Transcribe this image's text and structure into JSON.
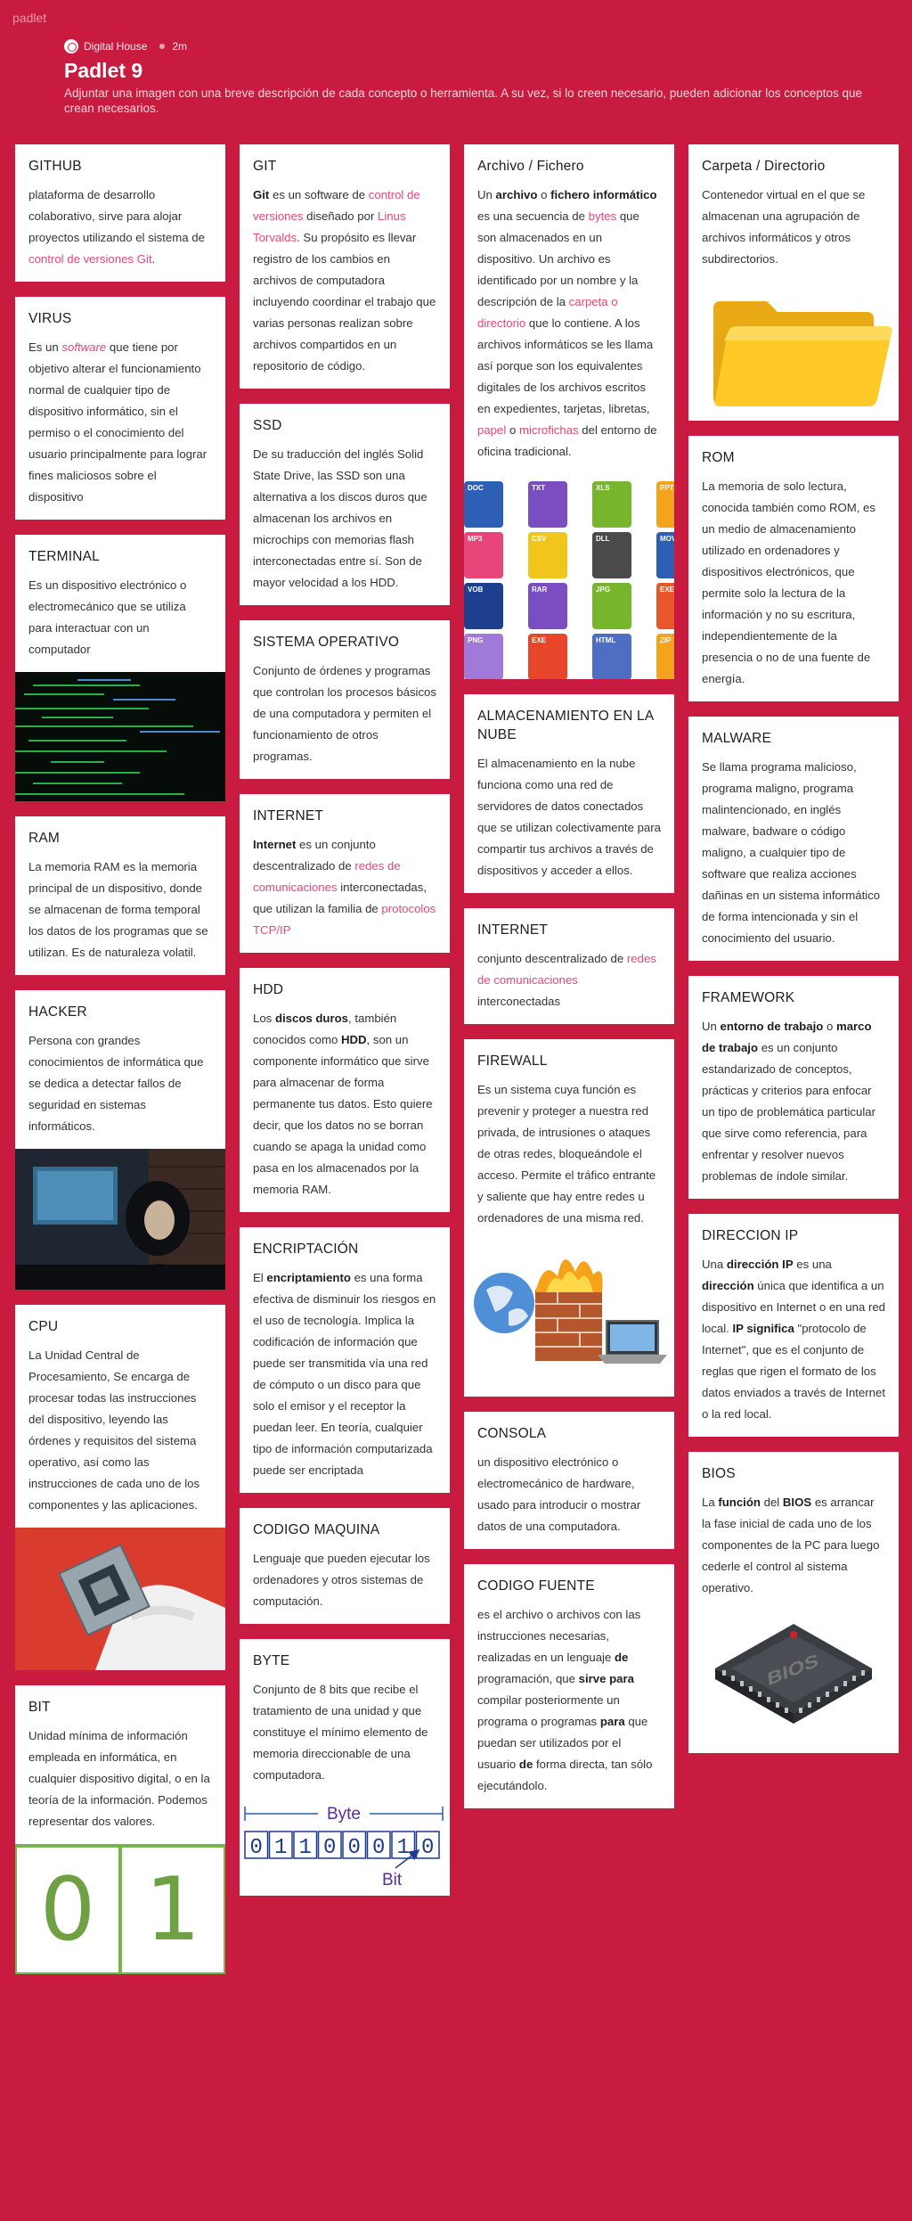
{
  "brand": "padlet",
  "header": {
    "author": "Digital House",
    "time": "2m",
    "title": "Padlet 9",
    "description": "Adjuntar una imagen con una breve descripción de cada concepto o herramienta. A su vez, si lo creen necesario, pueden adicionar los conceptos que crean necesarios."
  },
  "cards": {
    "github": {
      "title": "GITHUB",
      "p1": "plataforma de desarrollo colaborativo, sirve para alojar proyectos utilizando el sistema de ",
      "link": "control de versiones Git",
      "p2": "."
    },
    "virus": {
      "title": "VIRUS",
      "p1": "Es un ",
      "em": "software",
      "p2": " que tiene por objetivo alterar el funcionamiento normal de cualquier tipo de dispositivo informático, sin el permiso o el conocimiento del usuario principalmente para lograr fines maliciosos sobre el dispositivo"
    },
    "terminal": {
      "title": "TERMINAL",
      "text": "Es un dispositivo electrónico o electromecánico que se utiliza para interactuar con un computador"
    },
    "ram": {
      "title": "RAM",
      "text": "La memoria RAM es la memoria principal de un dispositivo, donde se almacenan de forma temporal los datos de los programas que se utilizan. Es de naturaleza volatil."
    },
    "hacker": {
      "title": "HACKER",
      "text": "Persona con grandes conocimientos de informática que se dedica a detectar fallos de seguridad en sistemas informáticos."
    },
    "cpu": {
      "title": "CPU",
      "text": "La Unidad Central de Procesamiento, Se encarga de procesar todas las instrucciones del dispositivo, leyendo las órdenes y requisitos del sistema operativo, así como las instrucciones de cada uno de los componentes y las aplicaciones."
    },
    "bit": {
      "title": "BIT",
      "text": "Unidad mínima de información empleada en informática, en cualquier dispositivo digital, o en la teoría de la información. Podemos representar dos valores.",
      "zero": "0",
      "one": "1"
    },
    "git": {
      "title": "GIT",
      "b1": "Git",
      "p1": "  es un software de ",
      "link1": "control de versiones",
      "p2": " diseñado por ",
      "link2": "Linus Torvalds",
      "p3": ". Su propósito es llevar registro de los cambios en archivos de computadora incluyendo coordinar el trabajo que varias personas realizan sobre archivos compartidos en un repositorio de código."
    },
    "ssd": {
      "title": "SSD",
      "text": "De su traducción del inglés Solid State Drive, las SSD son una alternativa a los discos duros que almacenan los archivos en microchips con memorias flash interconectadas entre sí. Son de mayor velocidad a los HDD."
    },
    "so": {
      "title": "SISTEMA OPERATIVO",
      "text": "Conjunto de órdenes y programas que controlan los procesos básicos de una computadora y permiten el funcionamiento de otros programas."
    },
    "internet1": {
      "title": "INTERNET",
      "b1": "Internet",
      "p1": " es un conjunto descentralizado de ",
      "link1": "redes de comunicaciones",
      "p2": " interconectadas, que utilizan la familia de ",
      "link2": "protocolos TCP/IP"
    },
    "hdd": {
      "title": "HDD",
      "p1": "Los ",
      "b1": "discos duros",
      "p2": ", también conocidos como ",
      "b2": "HDD",
      "p3": ", son un componente informático que sirve para almacenar de forma permanente tus datos. Esto quiere decir, que los datos no se borran cuando se apaga la unidad como pasa en los almacenados por la memoria RAM."
    },
    "enc": {
      "title": "ENCRIPTACIÓN",
      "p1": "El ",
      "b1": "encriptamiento",
      "p2": " es una forma efectiva de disminuir los riesgos en el uso de tecnología. Implica la codificación de información que puede ser transmitida vía una red de cómputo o un disco para que solo el emisor y el receptor la puedan leer. En teoría, cualquier tipo de información computarizada puede ser encriptada"
    },
    "codmaq": {
      "title": "CODIGO MAQUINA",
      "text": "Lenguaje que pueden ejecutar los ordenadores y otros sistemas de computación."
    },
    "byte": {
      "title": "BYTE",
      "text": "Conjunto de 8 bits que recibe el tratamiento de una unidad y que constituye el mínimo elemento de memoria direccionable de una computadora.",
      "label_byte": "Byte",
      "digits": [
        "0",
        "1",
        "1",
        "0",
        "0",
        "0",
        "1",
        "0"
      ],
      "label_bit": "Bit"
    },
    "archivo": {
      "title": "Archivo / Fichero",
      "p1": "Un ",
      "b1": "archivo",
      "p2": " o ",
      "b2": "fichero informático",
      "p3": " es una secuencia de ",
      "link1": "bytes",
      "p4": " que son almacenados en un dispositivo. Un archivo es identificado por un nombre y la descripción de la ",
      "link2": "carpeta o directorio",
      "p5": " que lo contiene. A los archivos informáticos se les llama así porque son los equivalentes digitales de los archivos escritos en expedientes, tarjetas, libretas, ",
      "link3": "papel",
      "p6": " o ",
      "link4": "microfichas",
      "p7": " del entorno de oficina tradicional.",
      "icons": [
        "DOC",
        "TXT",
        "XLS",
        "PPT",
        "MP3",
        "CSV",
        "DLL",
        "MOV",
        "VOB",
        "RAR",
        "JPG",
        "EXE",
        "PNG",
        "EXE",
        "HTML",
        "ZIP"
      ]
    },
    "nube": {
      "title": "ALMACENAMIENTO EN LA NUBE",
      "text": "El almacenamiento en la nube funciona como una red de servidores de datos conectados que se utilizan colectivamente para compartir tus archivos a través de dispositivos y acceder a ellos."
    },
    "internet2": {
      "title": "INTERNET",
      "p1": "conjunto descentralizado de ",
      "link1": "redes de comunicaciones",
      "p2": " interconectadas"
    },
    "firewall": {
      "title": "FIREWALL",
      "text": "Es un sistema cuya función es prevenir y proteger a nuestra red privada, de intrusiones o ataques de otras redes, bloqueándole el acceso. Permite el tráfico entrante y saliente que hay entre redes u ordenadores de una misma red."
    },
    "consola": {
      "title": "CONSOLA",
      "text": "un dispositivo electrónico o electromecánico de hardware, usado para introducir o mostrar datos de una computadora."
    },
    "codfuente": {
      "title": "CODIGO FUENTE",
      "p1": "es el archivo o archivos con las instrucciones necesarias, realizadas en un lenguaje ",
      "b1": "de",
      "p2": " programación, que ",
      "b2": "sirve para",
      "p3": " compilar posteriormente un programa o programas ",
      "b3": "para",
      "p4": " que puedan ser utilizados por el usuario ",
      "b4": "de",
      "p5": " forma directa, tan sólo ejecutándolo."
    },
    "carpeta": {
      "title": "Carpeta / Directorio",
      "text": "Contenedor virtual en el que se almacenan una agrupación de archivos informáticos y otros subdirectorios."
    },
    "rom": {
      "title": "ROM",
      "text": "La memoria de solo lectura, conocida también como ROM, es un medio de almacenamiento utilizado en ordenadores y dispositivos electrónicos, que permite solo la lectura de la información y no su escritura, independientemente de la presencia o no de una fuente de energía."
    },
    "malware": {
      "title": "MALWARE",
      "text": "Se llama programa malicioso, programa maligno, programa malintencionado, en inglés malware, badware o código maligno, a cualquier tipo de software que realiza acciones dañinas en un sistema informático de forma intencionada y sin el conocimiento del usuario."
    },
    "framework": {
      "title": "FRAMEWORK",
      "p1": "Un ",
      "b1": "entorno de trabajo",
      "p2": " o ",
      "b2": "marco de trabajo",
      "p3": " es un conjunto estandarizado de conceptos, prácticas y criterios para enfocar un tipo de problemática particular que sirve como referencia, para enfrentar y resolver nuevos problemas de índole similar."
    },
    "dirip": {
      "title": "DIRECCION IP",
      "p1": "Una ",
      "b1": "dirección IP",
      "p2": " es una ",
      "b2": "dirección",
      "p3": " única que identifica a un dispositivo en Internet o en una red local. ",
      "b3": "IP significa",
      "p4": " \"protocolo de Internet\", que es el conjunto de reglas que rigen el formato de los datos enviados a través de Internet o la red local."
    },
    "bios": {
      "title": "BIOS",
      "p1": "La ",
      "b1": "función",
      "p2": " del ",
      "b2": "BIOS",
      "p3": " es arrancar la fase inicial de cada uno de los componentes de la PC para luego cederle el control al sistema operativo.",
      "chip_label": "BIOS"
    }
  }
}
